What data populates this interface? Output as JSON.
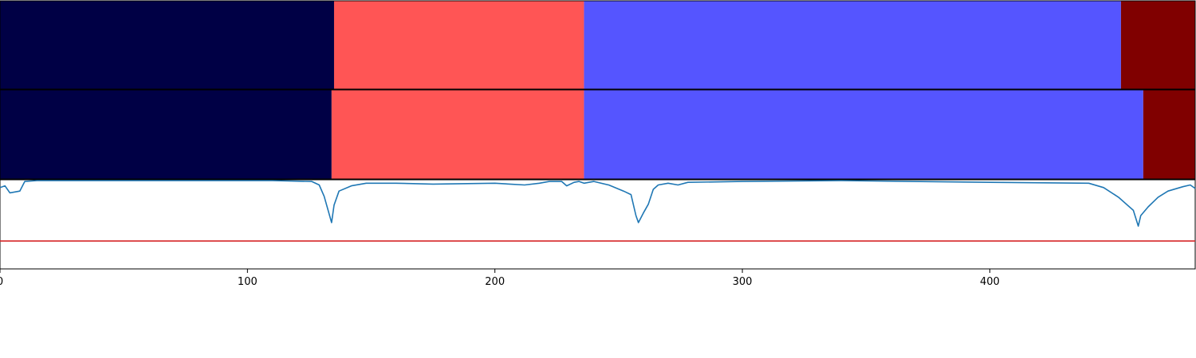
{
  "chart_data": {
    "type": "area",
    "x_ticks": [
      0,
      100,
      200,
      300,
      400
    ],
    "xlim": [
      0,
      483
    ],
    "segment_rows": [
      {
        "segments": [
          {
            "start": 0,
            "end": 135,
            "color": "#000045"
          },
          {
            "start": 135,
            "end": 236,
            "color": "#ff5555"
          },
          {
            "start": 236,
            "end": 453,
            "color": "#5555ff"
          },
          {
            "start": 453,
            "end": 483,
            "color": "#800000"
          }
        ]
      },
      {
        "segments": [
          {
            "start": 0,
            "end": 134,
            "color": "#000045"
          },
          {
            "start": 134,
            "end": 236,
            "color": "#ff5555"
          },
          {
            "start": 236,
            "end": 462,
            "color": "#5555ff"
          },
          {
            "start": 462,
            "end": 483,
            "color": "#800000"
          }
        ]
      }
    ],
    "series": [
      {
        "color": "#1f77b4",
        "ylim": [
          0,
          1
        ],
        "points": [
          [
            0,
            0.92
          ],
          [
            2,
            0.94
          ],
          [
            4,
            0.86
          ],
          [
            6,
            0.87
          ],
          [
            8,
            0.88
          ],
          [
            10,
            0.99
          ],
          [
            15,
            1.0
          ],
          [
            60,
            1.0
          ],
          [
            110,
            1.0
          ],
          [
            126,
            0.99
          ],
          [
            129,
            0.95
          ],
          [
            131,
            0.82
          ],
          [
            134,
            0.52
          ],
          [
            135,
            0.72
          ],
          [
            137,
            0.88
          ],
          [
            142,
            0.94
          ],
          [
            148,
            0.97
          ],
          [
            160,
            0.97
          ],
          [
            175,
            0.96
          ],
          [
            200,
            0.97
          ],
          [
            206,
            0.96
          ],
          [
            212,
            0.95
          ],
          [
            218,
            0.97
          ],
          [
            222,
            0.99
          ],
          [
            227,
            0.99
          ],
          [
            229,
            0.94
          ],
          [
            232,
            0.98
          ],
          [
            234,
            0.99
          ],
          [
            236,
            0.97
          ],
          [
            240,
            0.99
          ],
          [
            246,
            0.95
          ],
          [
            252,
            0.88
          ],
          [
            255,
            0.84
          ],
          [
            257,
            0.6
          ],
          [
            258,
            0.52
          ],
          [
            260,
            0.63
          ],
          [
            262,
            0.73
          ],
          [
            264,
            0.9
          ],
          [
            266,
            0.95
          ],
          [
            270,
            0.97
          ],
          [
            274,
            0.95
          ],
          [
            278,
            0.98
          ],
          [
            300,
            0.99
          ],
          [
            340,
            1.0
          ],
          [
            400,
            0.98
          ],
          [
            440,
            0.97
          ],
          [
            446,
            0.92
          ],
          [
            452,
            0.81
          ],
          [
            458,
            0.66
          ],
          [
            460,
            0.48
          ],
          [
            461,
            0.6
          ],
          [
            464,
            0.7
          ],
          [
            468,
            0.81
          ],
          [
            472,
            0.88
          ],
          [
            478,
            0.93
          ],
          [
            481,
            0.95
          ],
          [
            483,
            0.91
          ]
        ]
      }
    ],
    "hlines": [
      {
        "y": 0.31,
        "color": "#d62728"
      }
    ]
  }
}
